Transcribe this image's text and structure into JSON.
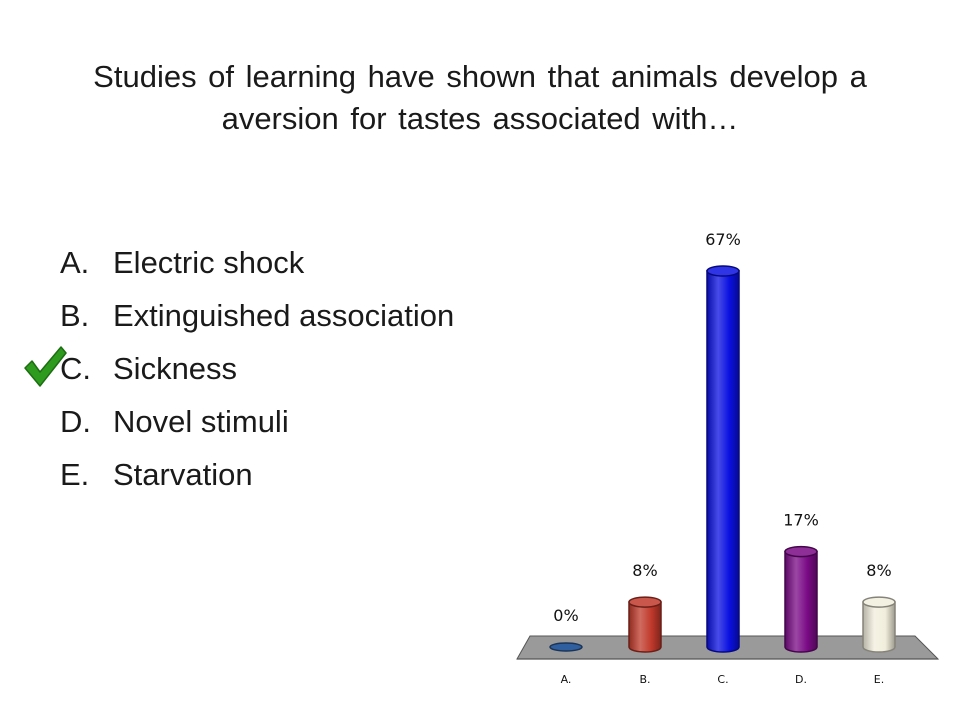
{
  "slide": {
    "title": "Studies of learning have shown that animals develop a aversion for tastes associated with…",
    "options": [
      {
        "letter": "A.",
        "text": "Electric shock",
        "correct": false
      },
      {
        "letter": "B.",
        "text": "Extinguished association",
        "correct": false
      },
      {
        "letter": "C.",
        "text": "Sickness",
        "correct": true
      },
      {
        "letter": "D.",
        "text": "Novel stimuli",
        "correct": false
      },
      {
        "letter": "E.",
        "text": "Starvation",
        "correct": false
      }
    ],
    "correct_marker_icon": "checkmark-icon",
    "correct_marker_color": "#2e9b1e"
  },
  "chart_data": {
    "type": "bar",
    "style": "3d-cylinder",
    "categories": [
      "A.",
      "B.",
      "C.",
      "D.",
      "E."
    ],
    "values": [
      0,
      8,
      67,
      17,
      8
    ],
    "data_labels": [
      "0%",
      "8%",
      "67%",
      "17%",
      "8%"
    ],
    "unit": "%",
    "colors": [
      "#2f5f9e",
      "#c0392b",
      "#0a10e0",
      "#7a0a86",
      "#f1eedc"
    ],
    "ylim": [
      0,
      67
    ],
    "title": "",
    "xlabel": "",
    "ylabel": "",
    "grid": false,
    "legend": "none"
  }
}
